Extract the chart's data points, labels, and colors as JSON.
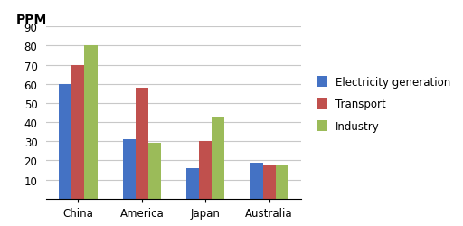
{
  "categories": [
    "China",
    "America",
    "Japan",
    "Australia"
  ],
  "series": [
    {
      "label": "Electricity generation",
      "color": "#4472C4",
      "values": [
        60,
        31,
        16,
        19
      ]
    },
    {
      "label": "Transport",
      "color": "#C0504D",
      "values": [
        70,
        58,
        30,
        18
      ]
    },
    {
      "label": "Industry",
      "color": "#9BBB59",
      "values": [
        80,
        29,
        43,
        18
      ]
    }
  ],
  "ylabel": "PPM",
  "ylim": [
    0,
    90
  ],
  "yticks": [
    0,
    10,
    20,
    30,
    40,
    50,
    60,
    70,
    80,
    90
  ],
  "background_color": "#ffffff",
  "grid_color": "#c8c8c8",
  "bar_width": 0.2,
  "legend_fontsize": 8.5,
  "tick_fontsize": 8.5,
  "ylabel_fontsize": 10
}
